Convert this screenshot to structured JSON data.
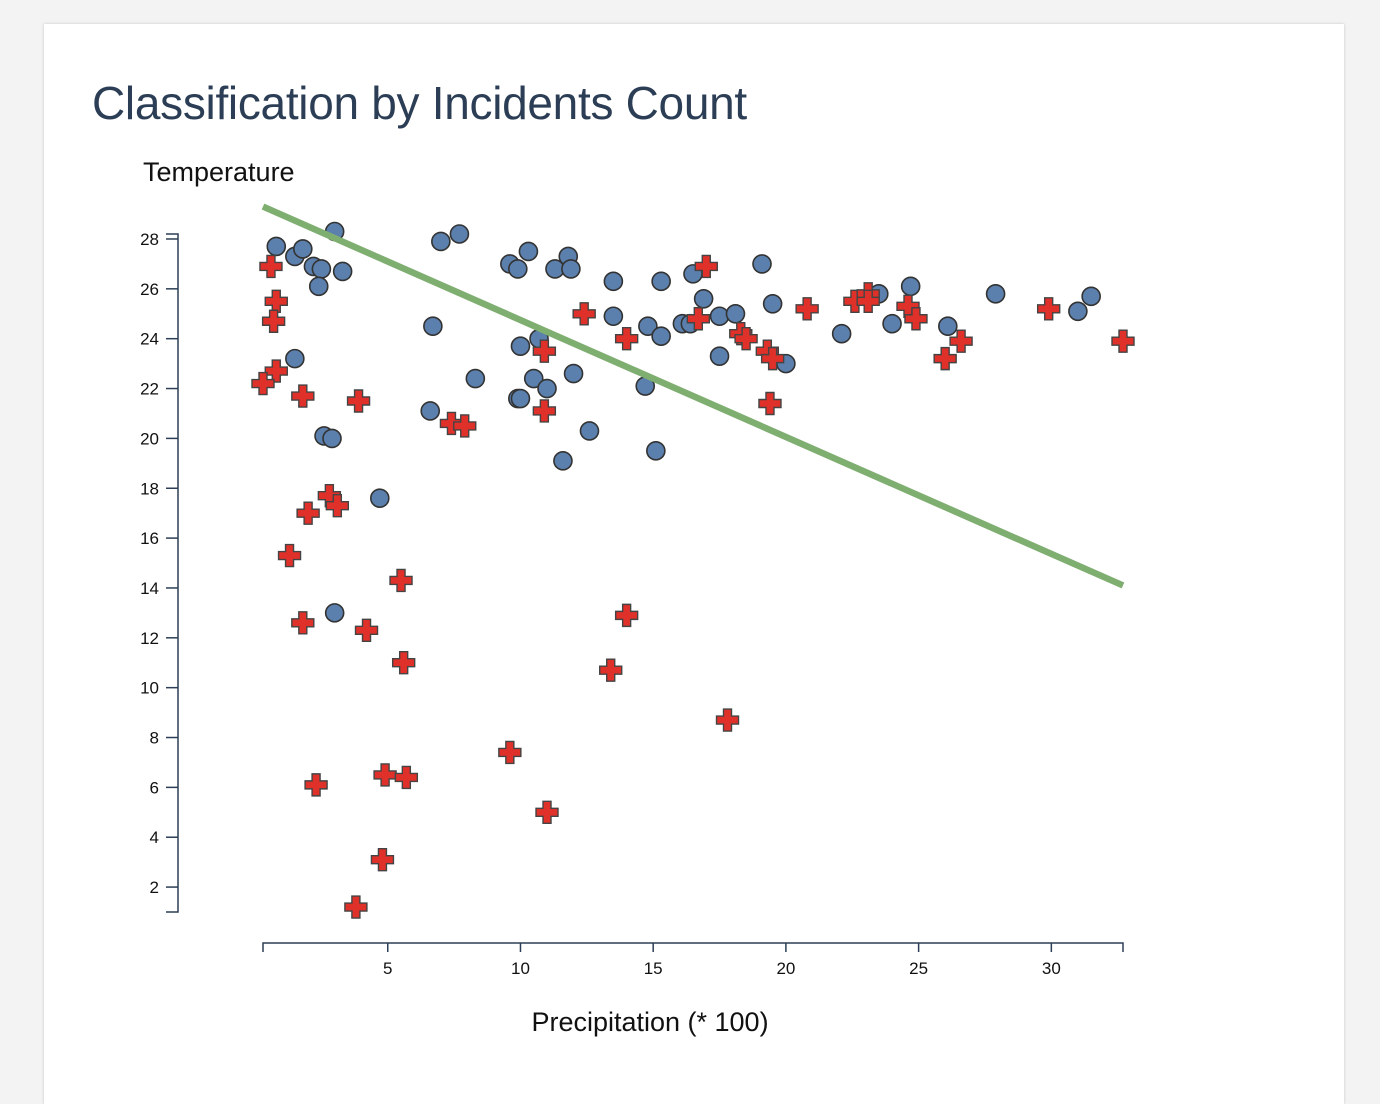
{
  "title": "Classification by Incidents Count",
  "chart_data": {
    "type": "scatter",
    "title": "Classification by Incidents Count",
    "xlabel": "Precipitation (* 100)",
    "ylabel": "Temperature",
    "xlim": [
      0.3,
      32.7
    ],
    "ylim": [
      1,
      28.2
    ],
    "xticks": [
      5,
      10,
      15,
      20,
      25,
      30
    ],
    "yticks": [
      2,
      4,
      6,
      8,
      10,
      12,
      14,
      16,
      18,
      20,
      22,
      24,
      26,
      28
    ],
    "grid": false,
    "series": [
      {
        "marker": "circle",
        "color": "#5b80ad",
        "points": [
          [
            0.8,
            27.7
          ],
          [
            1.5,
            27.3
          ],
          [
            1.8,
            27.6
          ],
          [
            2.2,
            26.9
          ],
          [
            2.5,
            26.8
          ],
          [
            2.4,
            26.1
          ],
          [
            3.0,
            28.3
          ],
          [
            3.3,
            26.7
          ],
          [
            1.5,
            23.2
          ],
          [
            2.6,
            20.1
          ],
          [
            2.9,
            20.0
          ],
          [
            4.7,
            17.6
          ],
          [
            3.0,
            13.0
          ],
          [
            6.7,
            24.5
          ],
          [
            7.0,
            27.9
          ],
          [
            7.7,
            28.2
          ],
          [
            8.3,
            22.4
          ],
          [
            6.6,
            21.1
          ],
          [
            9.6,
            27.0
          ],
          [
            9.9,
            26.8
          ],
          [
            10.3,
            27.5
          ],
          [
            10.0,
            23.7
          ],
          [
            10.7,
            24.0
          ],
          [
            10.5,
            22.4
          ],
          [
            11.0,
            22.0
          ],
          [
            9.9,
            21.6
          ],
          [
            10.0,
            21.6
          ],
          [
            11.3,
            26.8
          ],
          [
            11.8,
            27.3
          ],
          [
            11.9,
            26.8
          ],
          [
            12.0,
            22.6
          ],
          [
            11.6,
            19.1
          ],
          [
            12.6,
            20.3
          ],
          [
            13.5,
            26.3
          ],
          [
            13.5,
            24.9
          ],
          [
            14.8,
            24.5
          ],
          [
            15.3,
            26.3
          ],
          [
            15.3,
            24.1
          ],
          [
            14.7,
            22.1
          ],
          [
            15.1,
            19.5
          ],
          [
            16.1,
            24.6
          ],
          [
            16.4,
            24.6
          ],
          [
            16.5,
            26.6
          ],
          [
            16.9,
            25.6
          ],
          [
            17.5,
            24.9
          ],
          [
            18.1,
            25.0
          ],
          [
            17.5,
            23.3
          ],
          [
            19.1,
            27.0
          ],
          [
            19.5,
            25.4
          ],
          [
            20.0,
            23.0
          ],
          [
            22.1,
            24.2
          ],
          [
            23.5,
            25.8
          ],
          [
            24.0,
            24.6
          ],
          [
            24.7,
            26.1
          ],
          [
            26.1,
            24.5
          ],
          [
            27.9,
            25.8
          ],
          [
            31.0,
            25.1
          ],
          [
            31.5,
            25.7
          ]
        ]
      },
      {
        "marker": "cross",
        "color": "#e0302a",
        "points": [
          [
            0.6,
            26.9
          ],
          [
            0.8,
            25.5
          ],
          [
            0.7,
            24.7
          ],
          [
            0.8,
            22.7
          ],
          [
            0.3,
            22.2
          ],
          [
            1.8,
            21.7
          ],
          [
            3.9,
            21.5
          ],
          [
            2.8,
            17.7
          ],
          [
            3.1,
            17.3
          ],
          [
            2.0,
            17.0
          ],
          [
            1.3,
            15.3
          ],
          [
            1.8,
            12.6
          ],
          [
            2.3,
            6.1
          ],
          [
            4.2,
            12.3
          ],
          [
            5.5,
            14.3
          ],
          [
            5.6,
            11.0
          ],
          [
            3.8,
            1.2
          ],
          [
            4.8,
            3.1
          ],
          [
            4.9,
            6.5
          ],
          [
            5.7,
            6.4
          ],
          [
            7.4,
            20.6
          ],
          [
            7.9,
            20.5
          ],
          [
            9.6,
            7.4
          ],
          [
            10.9,
            23.5
          ],
          [
            10.9,
            21.1
          ],
          [
            11.0,
            5.0
          ],
          [
            12.4,
            25.0
          ],
          [
            13.4,
            10.7
          ],
          [
            14.0,
            24.0
          ],
          [
            14.0,
            12.9
          ],
          [
            16.7,
            24.8
          ],
          [
            17.0,
            26.9
          ],
          [
            17.8,
            8.7
          ],
          [
            18.3,
            24.2
          ],
          [
            18.5,
            24.0
          ],
          [
            19.3,
            23.5
          ],
          [
            19.5,
            23.2
          ],
          [
            19.4,
            21.4
          ],
          [
            20.8,
            25.2
          ],
          [
            22.6,
            25.5
          ],
          [
            23.1,
            25.8
          ],
          [
            23.1,
            25.5
          ],
          [
            24.6,
            25.3
          ],
          [
            24.9,
            24.8
          ],
          [
            26.0,
            23.2
          ],
          [
            26.6,
            23.9
          ],
          [
            29.9,
            25.2
          ],
          [
            32.7,
            23.9
          ]
        ]
      },
      {
        "marker": "line",
        "color": "#7fae71",
        "points": [
          [
            0.3,
            29.3
          ],
          [
            32.7,
            14.1
          ]
        ]
      }
    ]
  }
}
